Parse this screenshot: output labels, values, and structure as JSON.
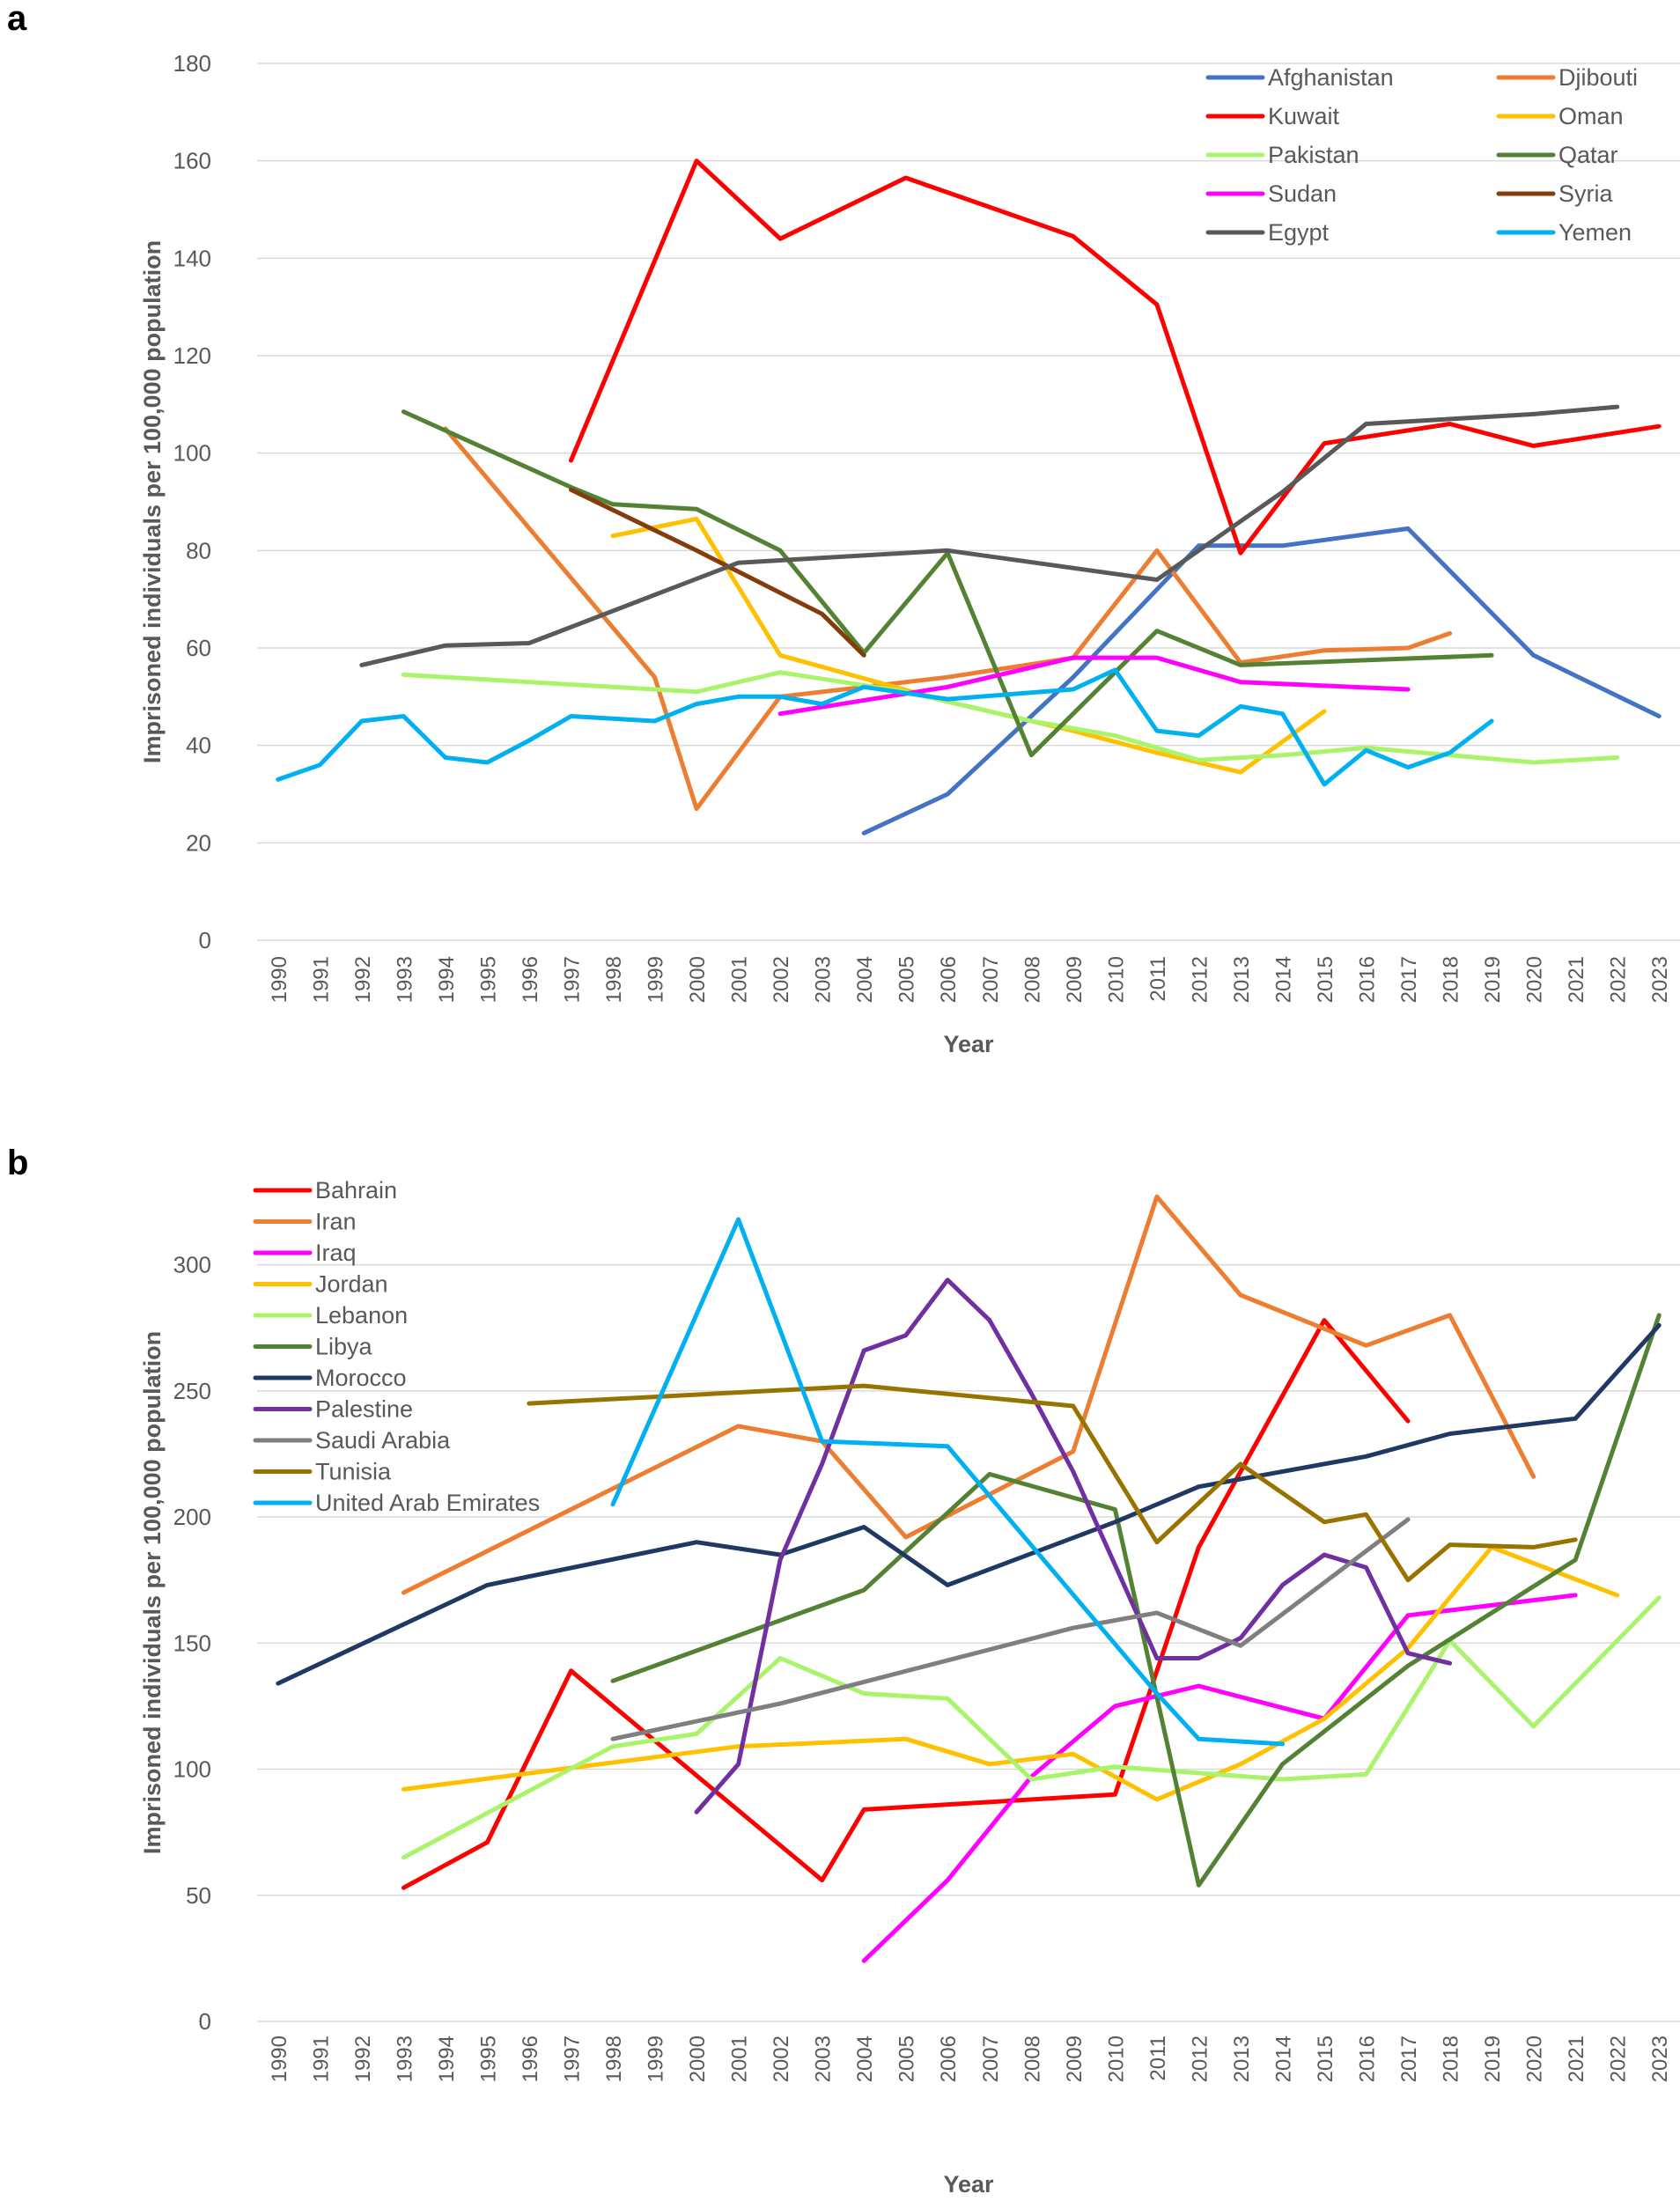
{
  "chart_data": [
    {
      "panel": "a",
      "type": "line",
      "title": "",
      "xlabel": "Year",
      "ylabel": "Imprisoned individuals per 100,000 population",
      "ylim": [
        0,
        180
      ],
      "yticks": [
        0,
        20,
        40,
        60,
        80,
        100,
        120,
        140,
        160,
        180
      ],
      "x": [
        1990,
        1991,
        1992,
        1993,
        1994,
        1995,
        1996,
        1997,
        1998,
        1999,
        2000,
        2001,
        2002,
        2003,
        2004,
        2005,
        2006,
        2007,
        2008,
        2009,
        2010,
        2011,
        2012,
        2013,
        2014,
        2015,
        2016,
        2017,
        2018,
        2019,
        2020,
        2021,
        2022,
        2023
      ],
      "grid": true,
      "legend": "top-right",
      "series": [
        {
          "name": "Afghanistan",
          "color": "#4472c4",
          "points": [
            [
              2004,
              22
            ],
            [
              2006,
              30
            ],
            [
              2009,
              54
            ],
            [
              2012,
              81
            ],
            [
              2014,
              81
            ],
            [
              2017,
              84.5
            ],
            [
              2020,
              58.5
            ],
            [
              2023,
              46
            ]
          ]
        },
        {
          "name": "Djibouti",
          "color": "#ed7d31",
          "points": [
            [
              1994,
              105
            ],
            [
              1999,
              54
            ],
            [
              2000,
              27
            ],
            [
              2002,
              50
            ],
            [
              2004,
              52
            ],
            [
              2006,
              54
            ],
            [
              2009,
              58
            ],
            [
              2011,
              80
            ],
            [
              2013,
              57
            ],
            [
              2015,
              59.5
            ],
            [
              2017,
              60
            ],
            [
              2018,
              63
            ]
          ]
        },
        {
          "name": "Kuwait",
          "color": "#ff0000",
          "points": [
            [
              1997,
              98.5
            ],
            [
              2000,
              160
            ],
            [
              2002,
              144
            ],
            [
              2005,
              156.5
            ],
            [
              2009,
              144.5
            ],
            [
              2011,
              130.5
            ],
            [
              2013,
              79.5
            ],
            [
              2015,
              102
            ],
            [
              2018,
              106
            ],
            [
              2020,
              101.5
            ],
            [
              2023,
              105.5
            ]
          ]
        },
        {
          "name": "Oman",
          "color": "#ffc000",
          "points": [
            [
              1998,
              83
            ],
            [
              2000,
              86.5
            ],
            [
              2002,
              58.5
            ],
            [
              2006,
              49
            ],
            [
              2009,
              43
            ],
            [
              2011,
              38.5
            ],
            [
              2013,
              34.5
            ],
            [
              2015,
              47
            ]
          ]
        },
        {
          "name": "Pakistan",
          "color": "#a9f46b",
          "points": [
            [
              1993,
              54.5
            ],
            [
              2000,
              51
            ],
            [
              2002,
              55
            ],
            [
              2005,
              51
            ],
            [
              2008,
              45
            ],
            [
              2010,
              42
            ],
            [
              2012,
              37
            ],
            [
              2014,
              38
            ],
            [
              2016,
              39.5
            ],
            [
              2018,
              38
            ],
            [
              2020,
              36.5
            ],
            [
              2022,
              37.5
            ]
          ]
        },
        {
          "name": "Qatar",
          "color": "#548235",
          "points": [
            [
              1993,
              108.5
            ],
            [
              1997,
              93
            ],
            [
              1998,
              89.5
            ],
            [
              2000,
              88.5
            ],
            [
              2002,
              80
            ],
            [
              2004,
              59
            ],
            [
              2006,
              79.5
            ],
            [
              2008,
              38
            ],
            [
              2011,
              63.5
            ],
            [
              2013,
              56.5
            ],
            [
              2019,
              58.5
            ]
          ]
        },
        {
          "name": "Sudan",
          "color": "#ff00ff",
          "points": [
            [
              2002,
              46.5
            ],
            [
              2006,
              52
            ],
            [
              2009,
              58
            ],
            [
              2011,
              58
            ],
            [
              2013,
              53
            ],
            [
              2017,
              51.5
            ]
          ]
        },
        {
          "name": "Syria",
          "color": "#843c0c",
          "points": [
            [
              1997,
              92.5
            ],
            [
              2000,
              80
            ],
            [
              2003,
              67
            ],
            [
              2004,
              58.5
            ]
          ]
        },
        {
          "name": "Egypt",
          "color": "#595959",
          "points": [
            [
              1992,
              56.5
            ],
            [
              1994,
              60.5
            ],
            [
              1996,
              61
            ],
            [
              2001,
              77.5
            ],
            [
              2006,
              80
            ],
            [
              2011,
              74
            ],
            [
              2014,
              92
            ],
            [
              2016,
              106
            ],
            [
              2020,
              108
            ],
            [
              2022,
              109.5
            ]
          ]
        },
        {
          "name": "Yemen",
          "color": "#00b0f0",
          "points": [
            [
              1990,
              33
            ],
            [
              1991,
              36
            ],
            [
              1992,
              45
            ],
            [
              1993,
              46
            ],
            [
              1994,
              37.5
            ],
            [
              1995,
              36.5
            ],
            [
              1996,
              41
            ],
            [
              1997,
              46
            ],
            [
              1999,
              45
            ],
            [
              2000,
              48.5
            ],
            [
              2001,
              50
            ],
            [
              2002,
              50
            ],
            [
              2003,
              48.5
            ],
            [
              2004,
              52
            ],
            [
              2006,
              49.5
            ],
            [
              2009,
              51.5
            ],
            [
              2010,
              55.5
            ],
            [
              2011,
              43
            ],
            [
              2012,
              42
            ],
            [
              2013,
              48
            ],
            [
              2014,
              46.5
            ],
            [
              2015,
              32
            ],
            [
              2016,
              39
            ],
            [
              2017,
              35.5
            ],
            [
              2018,
              38.5
            ],
            [
              2019,
              45
            ]
          ]
        }
      ]
    },
    {
      "panel": "b",
      "type": "line",
      "title": "",
      "xlabel": "Year",
      "ylabel": "Imprisoned individuals per 100,000 population",
      "ylim": [
        0,
        340
      ],
      "yticks": [
        0,
        50,
        100,
        150,
        200,
        250,
        300
      ],
      "x": [
        1990,
        1991,
        1992,
        1993,
        1994,
        1995,
        1996,
        1997,
        1998,
        1999,
        2000,
        2001,
        2002,
        2003,
        2004,
        2005,
        2006,
        2007,
        2008,
        2009,
        2010,
        2011,
        2012,
        2013,
        2014,
        2015,
        2016,
        2017,
        2018,
        2019,
        2020,
        2021,
        2022,
        2023
      ],
      "grid": true,
      "legend": "top-left",
      "series": [
        {
          "name": "Bahrain",
          "color": "#ff0000",
          "points": [
            [
              1993,
              53
            ],
            [
              1995,
              71
            ],
            [
              1997,
              139
            ],
            [
              2003,
              56
            ],
            [
              2004,
              84
            ],
            [
              2010,
              90
            ],
            [
              2012,
              188
            ],
            [
              2015,
              278
            ],
            [
              2017,
              238
            ]
          ]
        },
        {
          "name": "Iran",
          "color": "#ed7d31",
          "points": [
            [
              1993,
              170
            ],
            [
              2001,
              236
            ],
            [
              2003,
              230
            ],
            [
              2005,
              192
            ],
            [
              2009,
              226
            ],
            [
              2011,
              327
            ],
            [
              2013,
              288
            ],
            [
              2016,
              268
            ],
            [
              2018,
              280
            ],
            [
              2020,
              216
            ]
          ]
        },
        {
          "name": "Iraq",
          "color": "#ff00ff",
          "points": [
            [
              2004,
              24
            ],
            [
              2006,
              56
            ],
            [
              2008,
              97
            ],
            [
              2010,
              125
            ],
            [
              2012,
              133
            ],
            [
              2015,
              120
            ],
            [
              2017,
              161
            ],
            [
              2021,
              169
            ]
          ]
        },
        {
          "name": "Jordan",
          "color": "#ffc000",
          "points": [
            [
              1993,
              92
            ],
            [
              2001,
              109
            ],
            [
              2005,
              112
            ],
            [
              2007,
              102
            ],
            [
              2009,
              106
            ],
            [
              2011,
              88
            ],
            [
              2013,
              102
            ],
            [
              2015,
              120
            ],
            [
              2017,
              148
            ],
            [
              2019,
              188
            ],
            [
              2022,
              169
            ]
          ]
        },
        {
          "name": "Lebanon",
          "color": "#a9f46b",
          "points": [
            [
              1993,
              65
            ],
            [
              1998,
              109
            ],
            [
              2000,
              114
            ],
            [
              2002,
              144
            ],
            [
              2004,
              130
            ],
            [
              2006,
              128
            ],
            [
              2008,
              96
            ],
            [
              2010,
              101
            ],
            [
              2014,
              96
            ],
            [
              2016,
              98
            ],
            [
              2018,
              151
            ],
            [
              2020,
              117
            ],
            [
              2023,
              168
            ]
          ]
        },
        {
          "name": "Libya",
          "color": "#548235",
          "points": [
            [
              1998,
              135
            ],
            [
              2004,
              171
            ],
            [
              2007,
              217
            ],
            [
              2010,
              203
            ],
            [
              2012,
              54
            ],
            [
              2014,
              102
            ],
            [
              2017,
              141
            ],
            [
              2021,
              183
            ],
            [
              2023,
              280
            ]
          ]
        },
        {
          "name": "Morocco",
          "color": "#203864",
          "points": [
            [
              1990,
              134
            ],
            [
              1995,
              173
            ],
            [
              2000,
              190
            ],
            [
              2002,
              185
            ],
            [
              2004,
              196
            ],
            [
              2006,
              173
            ],
            [
              2010,
              198
            ],
            [
              2012,
              212
            ],
            [
              2016,
              224
            ],
            [
              2018,
              233
            ],
            [
              2021,
              239
            ],
            [
              2023,
              276
            ]
          ]
        },
        {
          "name": "Palestine",
          "color": "#7030a0",
          "points": [
            [
              2000,
              83
            ],
            [
              2001,
              102
            ],
            [
              2002,
              183
            ],
            [
              2003,
              221
            ],
            [
              2004,
              266
            ],
            [
              2005,
              272
            ],
            [
              2006,
              294
            ],
            [
              2007,
              278
            ],
            [
              2008,
              249
            ],
            [
              2009,
              218
            ],
            [
              2011,
              144
            ],
            [
              2012,
              144
            ],
            [
              2013,
              152
            ],
            [
              2014,
              173
            ],
            [
              2015,
              185
            ],
            [
              2016,
              180
            ],
            [
              2017,
              146
            ],
            [
              2018,
              142
            ]
          ]
        },
        {
          "name": "Saudi Arabia",
          "color": "#7f7f7f",
          "points": [
            [
              1998,
              112
            ],
            [
              2002,
              126
            ],
            [
              2009,
              156
            ],
            [
              2011,
              162
            ],
            [
              2013,
              149
            ],
            [
              2017,
              199
            ]
          ]
        },
        {
          "name": "Tunisia",
          "color": "#997300",
          "points": [
            [
              1996,
              245
            ],
            [
              2004,
              252
            ],
            [
              2009,
              244
            ],
            [
              2011,
              190
            ],
            [
              2013,
              221
            ],
            [
              2015,
              198
            ],
            [
              2016,
              201
            ],
            [
              2017,
              175
            ],
            [
              2018,
              189
            ],
            [
              2020,
              188
            ],
            [
              2021,
              191
            ]
          ]
        },
        {
          "name": "United Arab Emirates",
          "color": "#00b0f0",
          "points": [
            [
              1998,
              205
            ],
            [
              2001,
              318
            ],
            [
              2003,
              230
            ],
            [
              2006,
              228
            ],
            [
              2011,
              130
            ],
            [
              2012,
              112
            ],
            [
              2014,
              110
            ]
          ]
        }
      ]
    }
  ],
  "labels": {
    "panel_a": "a",
    "panel_b": "b"
  }
}
